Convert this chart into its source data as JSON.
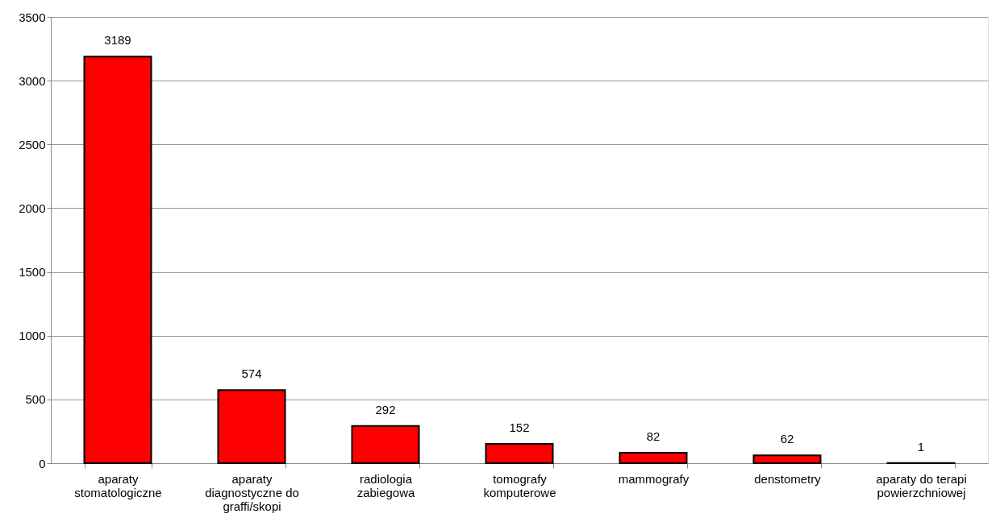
{
  "chart_data": {
    "type": "bar",
    "categories": [
      "aparaty stomatologiczne",
      "aparaty diagnostyczne do graffi/skopi",
      "radiologia zabiegowa",
      "tomografy komputerowe",
      "mammografy",
      "denstometry",
      "aparaty do terapi powierzchniowej"
    ],
    "values": [
      3189,
      574,
      292,
      152,
      82,
      62,
      1
    ],
    "color": "#ff0000",
    "ylim": [
      0,
      3500
    ],
    "yticks": [
      0,
      500,
      1000,
      1500,
      2000,
      2500,
      3000,
      3500
    ],
    "grid": "y",
    "data_labels": true
  }
}
